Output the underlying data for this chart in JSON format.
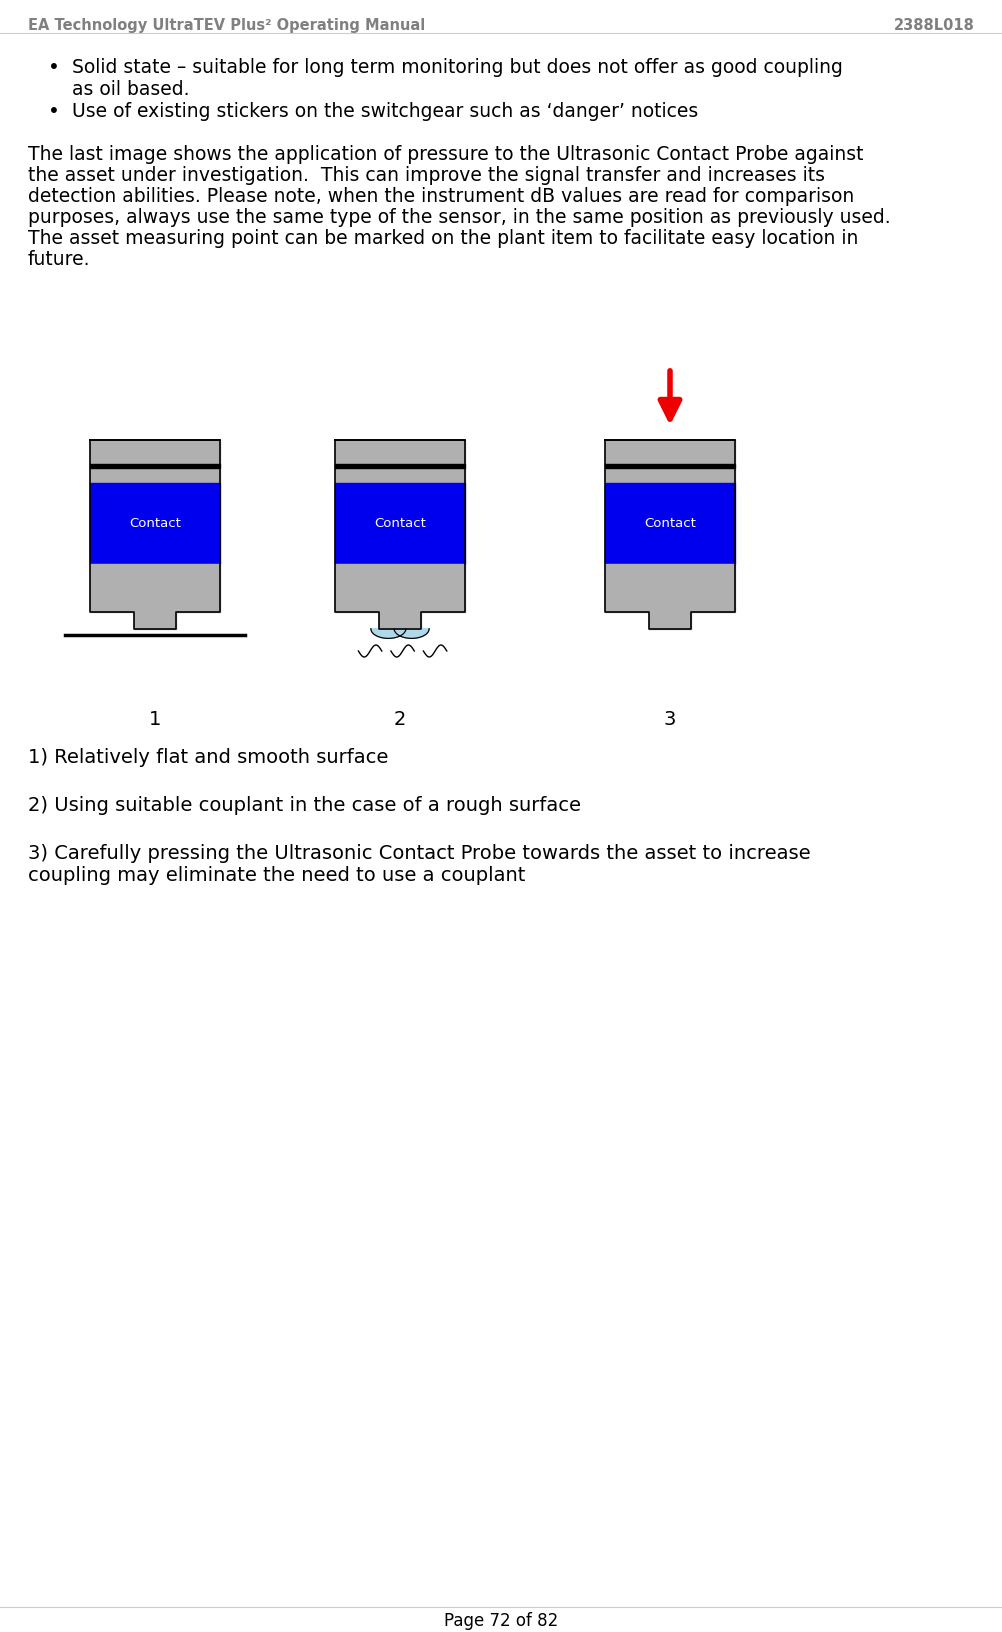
{
  "header_left": "EA Technology UltraTEV Plus² Operating Manual",
  "header_right": "2388L018",
  "footer": "Page 72 of 82",
  "bullet1_line1": "Solid state – suitable for long term monitoring but does not offer as good coupling",
  "bullet1_line2": "as oil based.",
  "bullet2": "Use of existing stickers on the switchgear such as ‘danger’ notices",
  "para_lines": [
    "The last image shows the application of pressure to the Ultrasonic Contact Probe against",
    "the asset under investigation.  This can improve the signal transfer and increases its",
    "detection abilities. Please note, when the instrument dB values are read for comparison",
    "purposes, always use the same type of the sensor, in the same position as previously used.",
    "The asset measuring point can be marked on the plant item to facilitate easy location in",
    "future."
  ],
  "item1": "1) Relatively flat and smooth surface",
  "item2": "2) Using suitable couplant in the case of a rough surface",
  "item3_line1": "3) Carefully pressing the Ultrasonic Contact Probe towards the asset to increase",
  "item3_line2": "coupling may eliminate the need to use a couplant",
  "contact_label": "Contact",
  "label1": "1",
  "label2": "2",
  "label3": "3",
  "bg_color": "#ffffff",
  "text_color": "#000000",
  "gray_color": "#b0b0b0",
  "blue_color": "#0000ee",
  "red_color": "#ee0000",
  "white_text": "#ffffff",
  "header_color": "#808080",
  "body_font_size": 13.5,
  "header_font_size": 10.5,
  "item_font_size": 14
}
